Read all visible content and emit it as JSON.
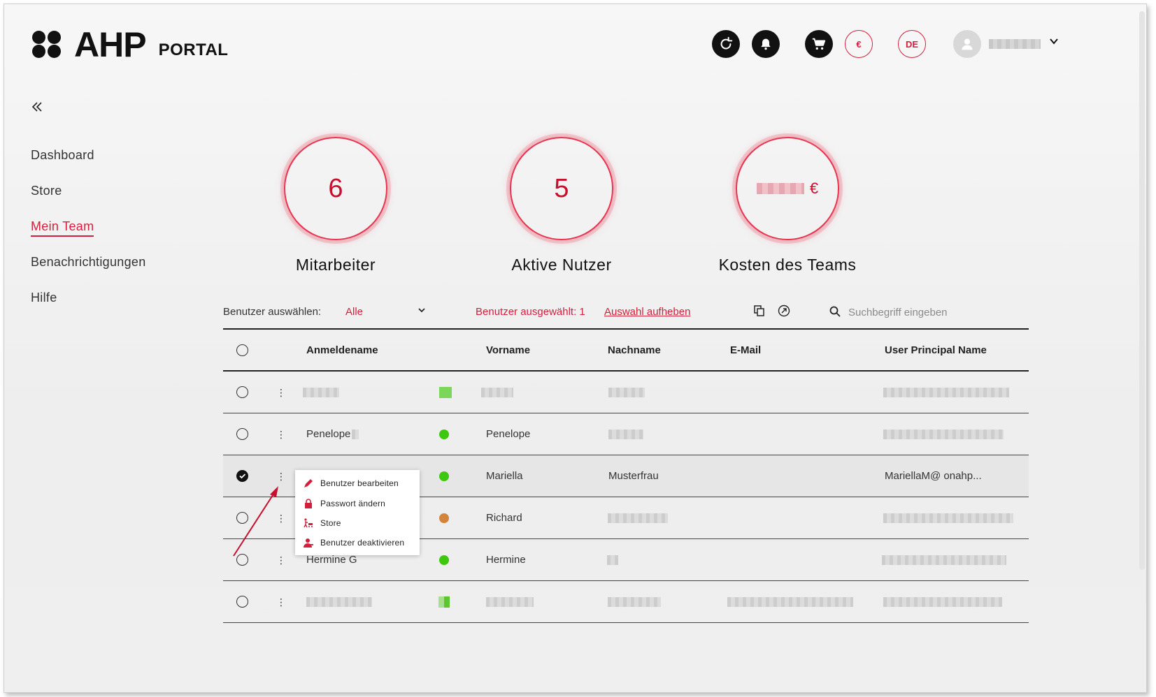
{
  "header": {
    "logo_text": "AHP",
    "logo_sub": "PORTAL",
    "icons": [
      "refresh-icon",
      "bell-icon",
      "cart-icon"
    ],
    "currency_label": "€",
    "language_label": "DE"
  },
  "sidebar": {
    "items": [
      {
        "label": "Dashboard"
      },
      {
        "label": "Store"
      },
      {
        "label": "Mein Team"
      },
      {
        "label": "Benachrichtigungen"
      },
      {
        "label": "Hilfe"
      }
    ]
  },
  "stats": [
    {
      "value": "6",
      "label": "Mitarbeiter"
    },
    {
      "value": "5",
      "label": "Aktive Nutzer"
    },
    {
      "value": "€",
      "label": "Kosten des Teams"
    }
  ],
  "toolbar": {
    "select_label": "Benutzer auswählen:",
    "select_value": "Alle",
    "selected_text": "Benutzer ausgewählt: 1",
    "clear_link": "Auswahl aufheben",
    "search_placeholder": "Suchbegriff eingeben"
  },
  "table": {
    "columns": [
      "Anmeldename",
      "Vorname",
      "Nachname",
      "E-Mail",
      "User Principal Name"
    ],
    "rows": [
      {
        "anmeldename": "",
        "vorname": "",
        "nachname": "",
        "email": "",
        "upn": "",
        "status": "#6ccf3a",
        "selected": false
      },
      {
        "anmeldename": "Penelope",
        "vorname": "Penelope",
        "nachname": "",
        "email": "",
        "upn": "",
        "status": "#3ec70f",
        "selected": false
      },
      {
        "anmeldename": "",
        "vorname": "Mariella",
        "nachname": "Musterfrau",
        "email": "",
        "upn": "MariellaM@     onahp...",
        "status": "#3ec70f",
        "selected": true
      },
      {
        "anmeldename": "",
        "vorname": "Richard",
        "nachname": "",
        "email": "",
        "upn": "",
        "status": "#d2843a",
        "selected": false
      },
      {
        "anmeldename": "Hermine G",
        "vorname": "Hermine",
        "nachname": "",
        "email": "",
        "upn": "",
        "status": "#3ec70f",
        "selected": false
      },
      {
        "anmeldename": "",
        "vorname": "",
        "nachname": "",
        "email": "",
        "upn": "",
        "status": "#6ccf3a",
        "selected": false
      }
    ]
  },
  "context_menu": {
    "items": [
      {
        "label": "Benutzer bearbeiten",
        "icon": "pencil-icon"
      },
      {
        "label": "Passwort ändern",
        "icon": "lock-icon"
      },
      {
        "label": "Store",
        "icon": "cart-person-icon"
      },
      {
        "label": "Benutzer deaktivieren",
        "icon": "user-remove-icon"
      }
    ]
  },
  "colors": {
    "accent": "#d41f3c",
    "active_green": "#3ec70f",
    "idle_orange": "#d2843a"
  }
}
